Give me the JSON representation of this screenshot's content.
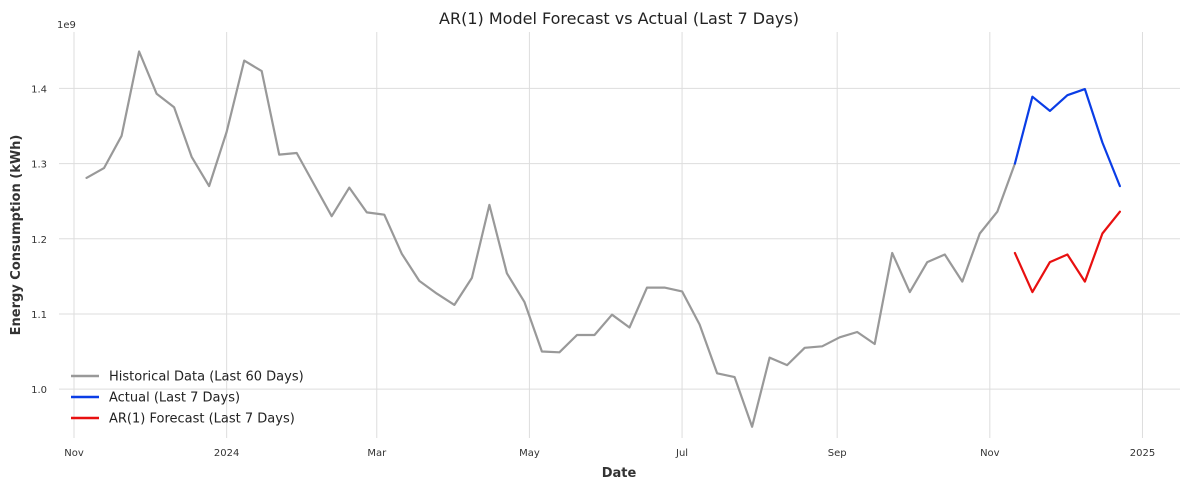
{
  "chart_data": {
    "type": "line",
    "title": "AR(1) Model Forecast vs Actual (Last 7 Days)",
    "xlabel": "Date",
    "ylabel": "Energy Consumption (kWh)",
    "y_multiplier_label": "1e9",
    "x_tick_labels": [
      "Nov",
      "2024",
      "Mar",
      "May",
      "Jul",
      "Sep",
      "Nov",
      "2025"
    ],
    "x_tick_dates": [
      "2023-11-01",
      "2024-01-01",
      "2024-03-01",
      "2024-05-01",
      "2024-07-01",
      "2024-09-01",
      "2024-11-01",
      "2025-01-01"
    ],
    "y_tick_labels": [
      "1.0",
      "1.1",
      "1.2",
      "1.3",
      "1.4"
    ],
    "y_tick_values": [
      1.0,
      1.1,
      1.2,
      1.3,
      1.4
    ],
    "xlim": [
      "2023-10-26",
      "2025-01-16"
    ],
    "ylim": [
      0.935,
      1.475
    ],
    "grid": true,
    "legend_position": "lower-left",
    "series": [
      {
        "name": "Historical Data (Last 60 Days)",
        "color": "#999999",
        "points": [
          [
            "2023-11-06",
            1.281
          ],
          [
            "2023-11-13",
            1.294
          ],
          [
            "2023-11-20",
            1.337
          ],
          [
            "2023-11-27",
            1.449
          ],
          [
            "2023-12-04",
            1.393
          ],
          [
            "2023-12-11",
            1.375
          ],
          [
            "2023-12-18",
            1.309
          ],
          [
            "2023-12-25",
            1.27
          ],
          [
            "2024-01-01",
            1.342
          ],
          [
            "2024-01-08",
            1.437
          ],
          [
            "2024-01-15",
            1.423
          ],
          [
            "2024-01-22",
            1.312
          ],
          [
            "2024-01-29",
            1.314
          ],
          [
            "2024-02-05",
            1.272
          ],
          [
            "2024-02-12",
            1.23
          ],
          [
            "2024-02-19",
            1.268
          ],
          [
            "2024-02-26",
            1.235
          ],
          [
            "2024-03-04",
            1.232
          ],
          [
            "2024-03-11",
            1.18
          ],
          [
            "2024-03-18",
            1.144
          ],
          [
            "2024-03-25",
            1.127
          ],
          [
            "2024-04-01",
            1.112
          ],
          [
            "2024-04-08",
            1.148
          ],
          [
            "2024-04-15",
            1.245
          ],
          [
            "2024-04-22",
            1.154
          ],
          [
            "2024-04-29",
            1.116
          ],
          [
            "2024-05-06",
            1.05
          ],
          [
            "2024-05-13",
            1.049
          ],
          [
            "2024-05-20",
            1.072
          ],
          [
            "2024-05-27",
            1.072
          ],
          [
            "2024-06-03",
            1.099
          ],
          [
            "2024-06-10",
            1.082
          ],
          [
            "2024-06-17",
            1.135
          ],
          [
            "2024-06-24",
            1.135
          ],
          [
            "2024-07-01",
            1.13
          ],
          [
            "2024-07-08",
            1.086
          ],
          [
            "2024-07-15",
            1.021
          ],
          [
            "2024-07-22",
            1.016
          ],
          [
            "2024-07-29",
            0.95
          ],
          [
            "2024-08-05",
            1.042
          ],
          [
            "2024-08-12",
            1.032
          ],
          [
            "2024-08-19",
            1.055
          ],
          [
            "2024-08-26",
            1.057
          ],
          [
            "2024-09-02",
            1.069
          ],
          [
            "2024-09-09",
            1.076
          ],
          [
            "2024-09-16",
            1.06
          ],
          [
            "2024-09-23",
            1.181
          ],
          [
            "2024-09-30",
            1.129
          ],
          [
            "2024-10-07",
            1.169
          ],
          [
            "2024-10-14",
            1.179
          ],
          [
            "2024-10-21",
            1.143
          ],
          [
            "2024-10-28",
            1.207
          ],
          [
            "2024-11-04",
            1.236
          ],
          [
            "2024-11-11",
            1.3
          ]
        ]
      },
      {
        "name": "Actual (Last 7 Days)",
        "color": "#0a3de6",
        "points": [
          [
            "2024-11-11",
            1.3
          ],
          [
            "2024-11-18",
            1.389
          ],
          [
            "2024-11-25",
            1.37
          ],
          [
            "2024-12-02",
            1.391
          ],
          [
            "2024-12-09",
            1.399
          ],
          [
            "2024-12-16",
            1.328
          ],
          [
            "2024-12-23",
            1.27
          ]
        ]
      },
      {
        "name": "AR(1) Forecast (Last 7 Days)",
        "color": "#e81010",
        "points": [
          [
            "2024-11-11",
            1.181
          ],
          [
            "2024-11-18",
            1.129
          ],
          [
            "2024-11-25",
            1.169
          ],
          [
            "2024-12-02",
            1.179
          ],
          [
            "2024-12-09",
            1.143
          ],
          [
            "2024-12-16",
            1.207
          ],
          [
            "2024-12-23",
            1.236
          ]
        ]
      }
    ]
  }
}
